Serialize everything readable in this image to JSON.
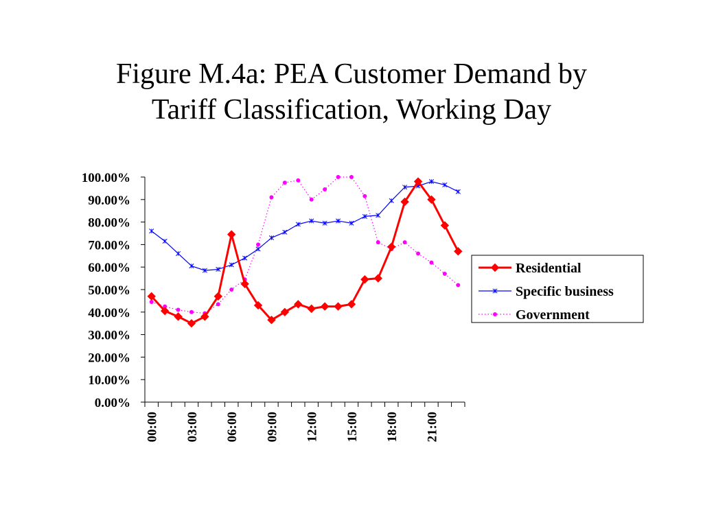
{
  "slide": {
    "title_line1": "Figure M.4a: PEA Customer Demand by",
    "title_line2": "Tariff Classification, Working Day"
  },
  "chart_data": {
    "type": "line",
    "title": "Figure M.4a: PEA Customer Demand by Tariff Classification, Working Day",
    "xlabel": "",
    "ylabel": "",
    "ylim": [
      0,
      100
    ],
    "y_ticks": [
      "100.00%",
      "90.00%",
      "80.00%",
      "70.00%",
      "60.00%",
      "50.00%",
      "40.00%",
      "30.00%",
      "20.00%",
      "10.00%",
      "0.00%"
    ],
    "x_tick_labels": [
      "00:00",
      "03:00",
      "06:00",
      "09:00",
      "12:00",
      "15:00",
      "18:00",
      "21:00"
    ],
    "x": [
      0,
      1,
      2,
      3,
      4,
      5,
      6,
      7,
      8,
      9,
      10,
      11,
      12,
      13,
      14,
      15,
      16,
      17,
      18,
      19,
      20,
      21,
      22,
      23
    ],
    "grid": false,
    "legend_position": "right",
    "series": [
      {
        "name": "Residential",
        "color": "#ff0000",
        "marker": "diamond",
        "line_style": "solid-thick",
        "values": [
          47.0,
          40.5,
          38.0,
          35.0,
          38.0,
          47.0,
          74.5,
          52.5,
          43.0,
          36.5,
          40.0,
          43.5,
          41.5,
          42.5,
          42.5,
          43.5,
          54.5,
          55.0,
          69.0,
          89.0,
          98.0,
          90.0,
          78.5,
          67.0
        ]
      },
      {
        "name": "Specific business",
        "color": "#0000ff",
        "marker": "star",
        "line_style": "solid-thin",
        "values": [
          76.0,
          71.5,
          66.0,
          60.5,
          58.5,
          59.0,
          61.0,
          64.0,
          68.0,
          73.0,
          75.5,
          79.0,
          80.5,
          79.5,
          80.5,
          79.5,
          82.5,
          83.0,
          89.5,
          95.5,
          96.0,
          98.0,
          96.5,
          93.5
        ]
      },
      {
        "name": "Government",
        "color": "#ff00ff",
        "marker": "circle",
        "line_style": "dotted",
        "values": [
          44.5,
          42.5,
          41.0,
          40.0,
          39.5,
          43.5,
          50.0,
          54.5,
          70.0,
          91.0,
          97.5,
          98.5,
          90.0,
          94.5,
          100.0,
          100.0,
          91.5,
          71.0,
          68.0,
          71.0,
          66.0,
          62.0,
          57.0,
          52.0
        ]
      }
    ]
  }
}
